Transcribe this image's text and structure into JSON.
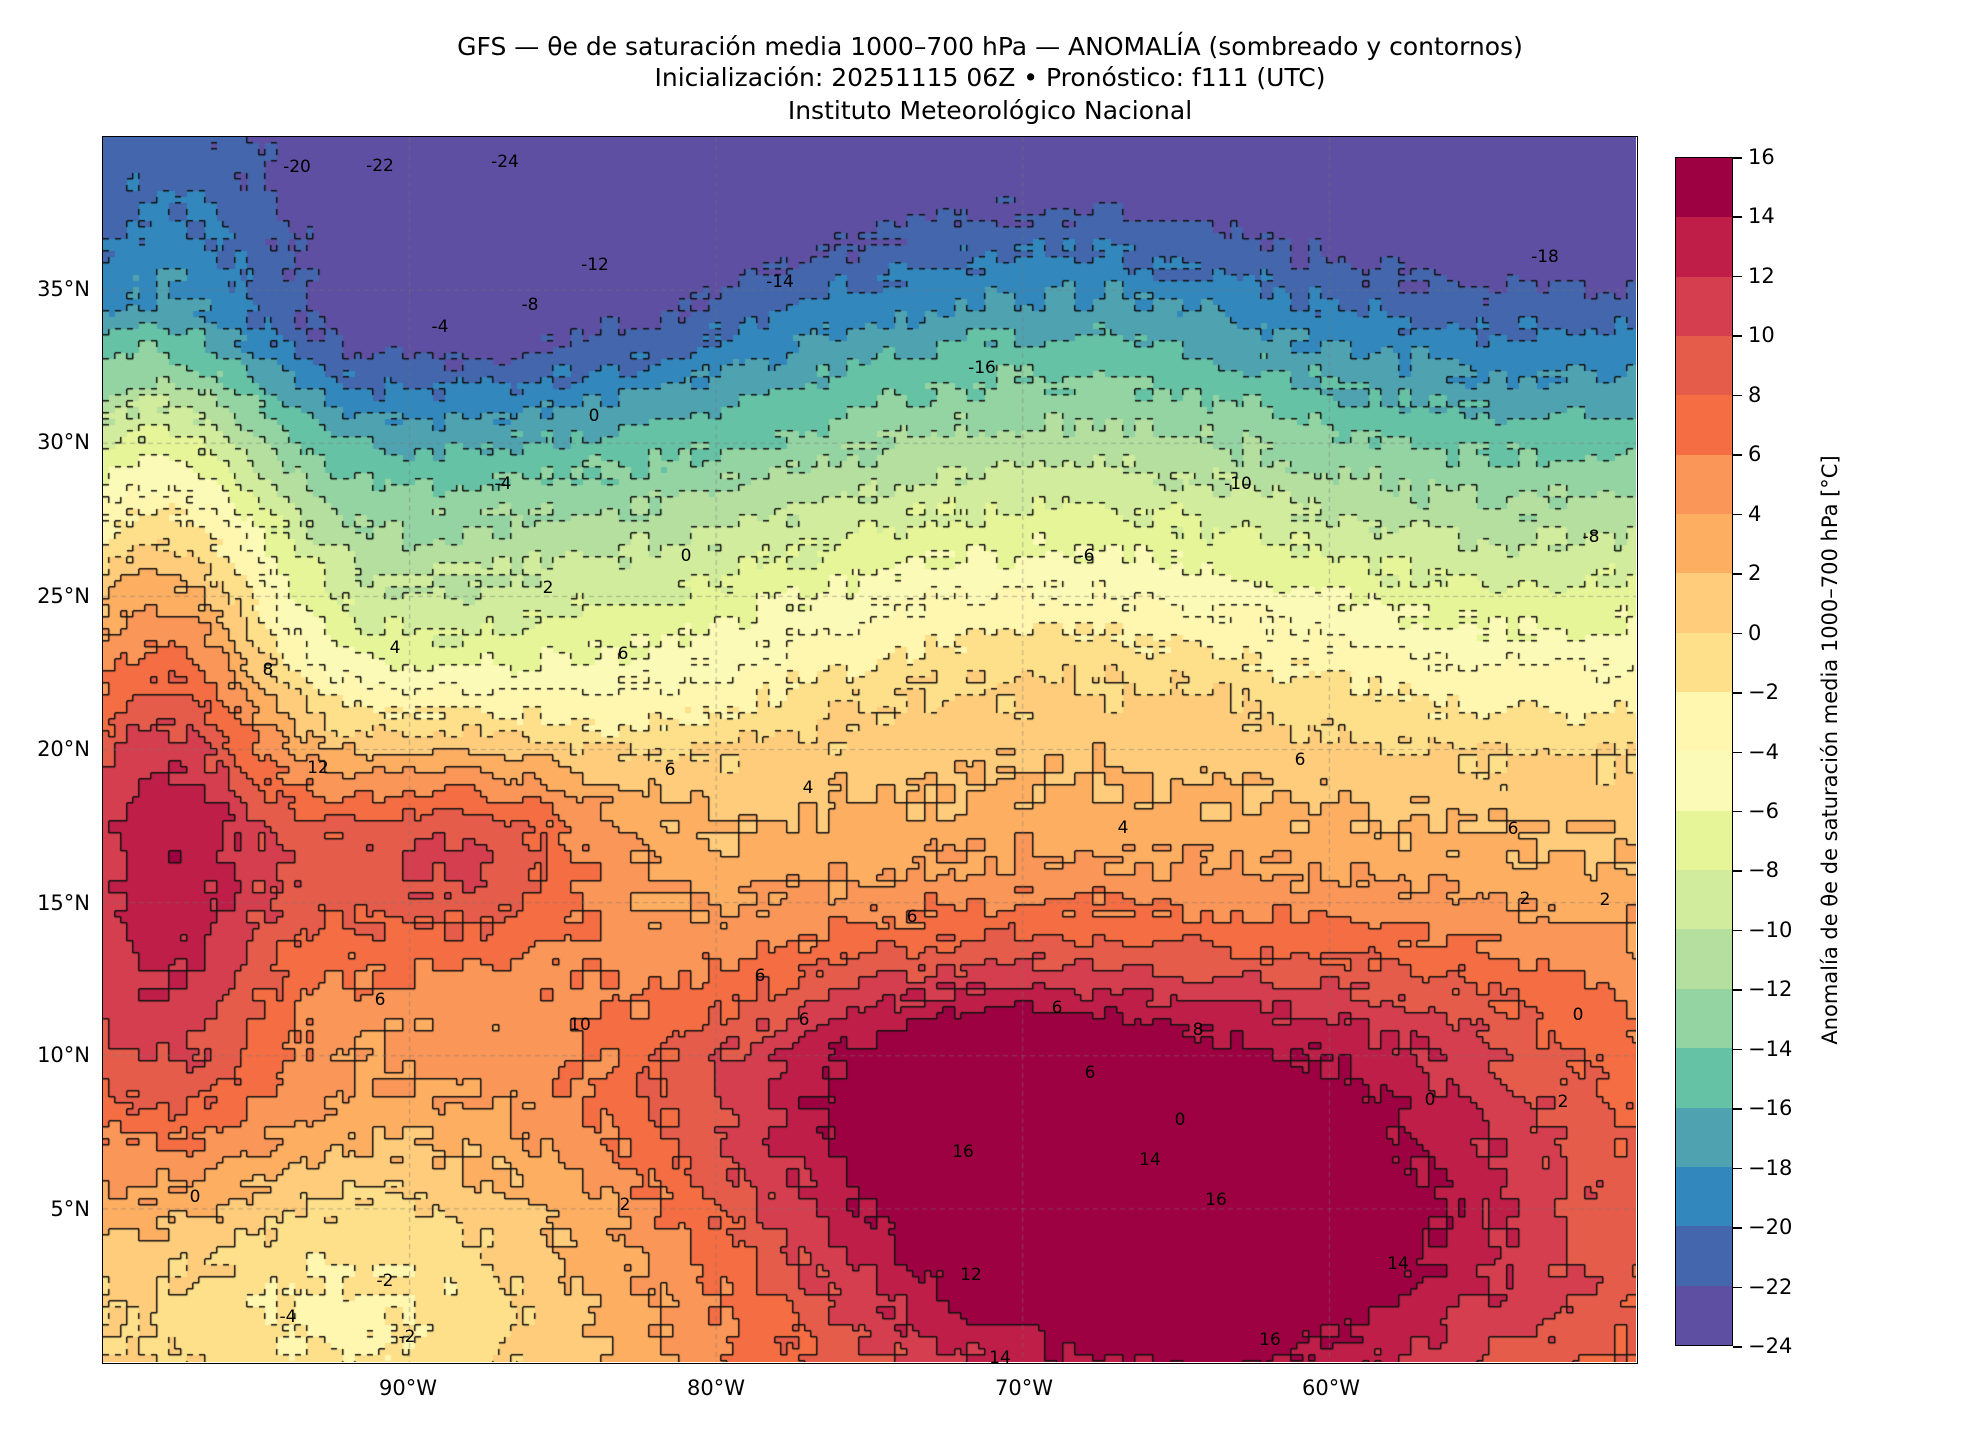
{
  "title": {
    "line1": "GFS — θe de saturación media 1000–700 hPa — ANOMALÍA (sombreado y contornos)",
    "line2": "Inicialización: 20251115 06Z   •   Pronóstico: f111 (UTC)",
    "line3": "Instituto Meteorológico Nacional"
  },
  "map": {
    "lat_labels": [
      "35°N",
      "30°N",
      "25°N",
      "20°N",
      "15°N",
      "10°N",
      "5°N"
    ],
    "lon_labels": [
      "90°W",
      "80°W",
      "70°W",
      "60°W"
    ],
    "lon_range": [
      -100,
      -50
    ],
    "lat_range": [
      0,
      40
    ],
    "contour_labels": [
      "-20",
      "-22",
      "-24",
      "-12",
      "-14",
      "-8",
      "-4",
      "-18",
      "-16",
      "-10",
      "-6",
      "-8",
      "0",
      "-4",
      "0",
      "2",
      "4",
      "6",
      "8",
      "12",
      "6",
      "4",
      "6",
      "6",
      "6",
      "0",
      "0",
      "4",
      "2",
      "6",
      "6",
      "6",
      "6",
      "8",
      "10",
      "6",
      "14",
      "16",
      "16",
      "12",
      "14",
      "16",
      "14",
      "2",
      "0",
      "2",
      "-2",
      "-4",
      "-2",
      "0",
      "2"
    ]
  },
  "colorbar": {
    "label": "Anomalía de θe de saturación media 1000–700 hPa [°C]",
    "ticks": [
      "16",
      "14",
      "12",
      "10",
      "8",
      "6",
      "4",
      "2",
      "0",
      "−2",
      "−4",
      "−6",
      "−8",
      "−10",
      "−12",
      "−14",
      "−16",
      "−18",
      "−20",
      "−22",
      "−24"
    ],
    "colors": [
      "#9e0142",
      "#be1e48",
      "#d53e4f",
      "#e55c4b",
      "#f46d43",
      "#f99658",
      "#fdae61",
      "#fecc7b",
      "#fee08b",
      "#fff6b0",
      "#fbfab6",
      "#e6f598",
      "#d0ec9c",
      "#b4df9f",
      "#94d4a2",
      "#66c2a5",
      "#4fa3b0",
      "#3288bd",
      "#4366ad",
      "#5e4fa2"
    ]
  }
}
